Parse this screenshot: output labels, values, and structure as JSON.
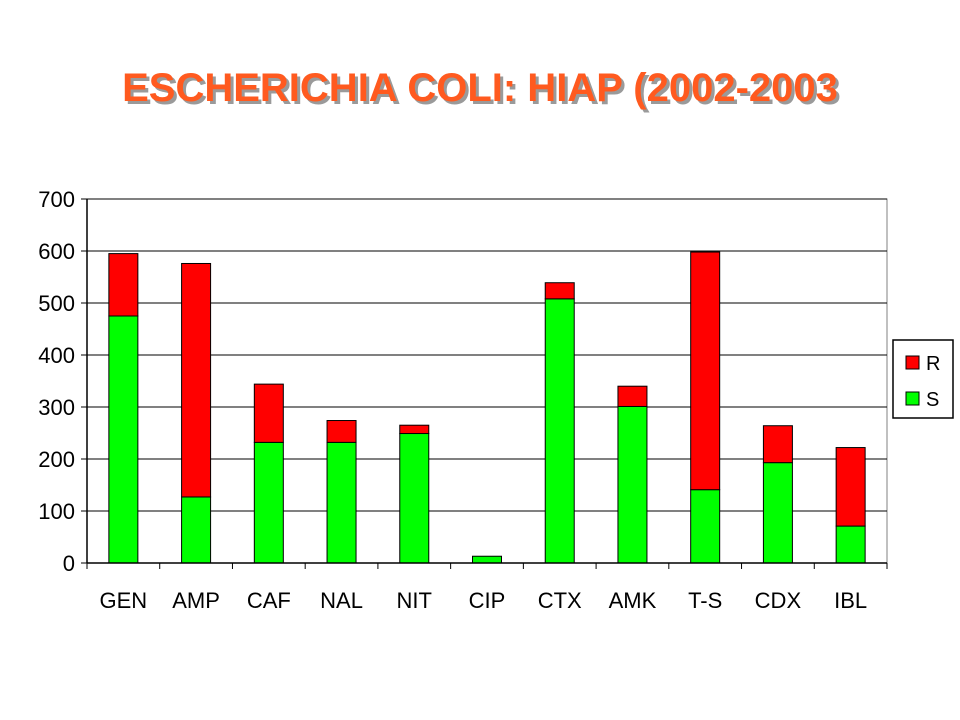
{
  "title": "ESCHERICHIA COLI: HIAP (2002-2003",
  "colors": {
    "title": "#ff5a1f",
    "R": "#ff0000",
    "S": "#00ff00"
  },
  "chart_data": {
    "type": "bar",
    "stacked": true,
    "categories": [
      "GEN",
      "AMP",
      "CAF",
      "NAL",
      "NIT",
      "CIP",
      "CTX",
      "AMK",
      "T-S",
      "CDX",
      "IBL"
    ],
    "series": [
      {
        "name": "S",
        "color": "#00ff00",
        "values": [
          475,
          127,
          232,
          232,
          249,
          13,
          508,
          301,
          141,
          193,
          71
        ]
      },
      {
        "name": "R",
        "color": "#ff0000",
        "values": [
          120,
          449,
          112,
          42,
          16,
          0,
          31,
          39,
          457,
          71,
          151
        ]
      }
    ],
    "yticks": [
      0,
      100,
      200,
      300,
      400,
      500,
      600,
      700
    ],
    "ylim": [
      0,
      700
    ],
    "grid": true,
    "legend": {
      "position": "right",
      "entries": [
        "R",
        "S"
      ]
    }
  }
}
